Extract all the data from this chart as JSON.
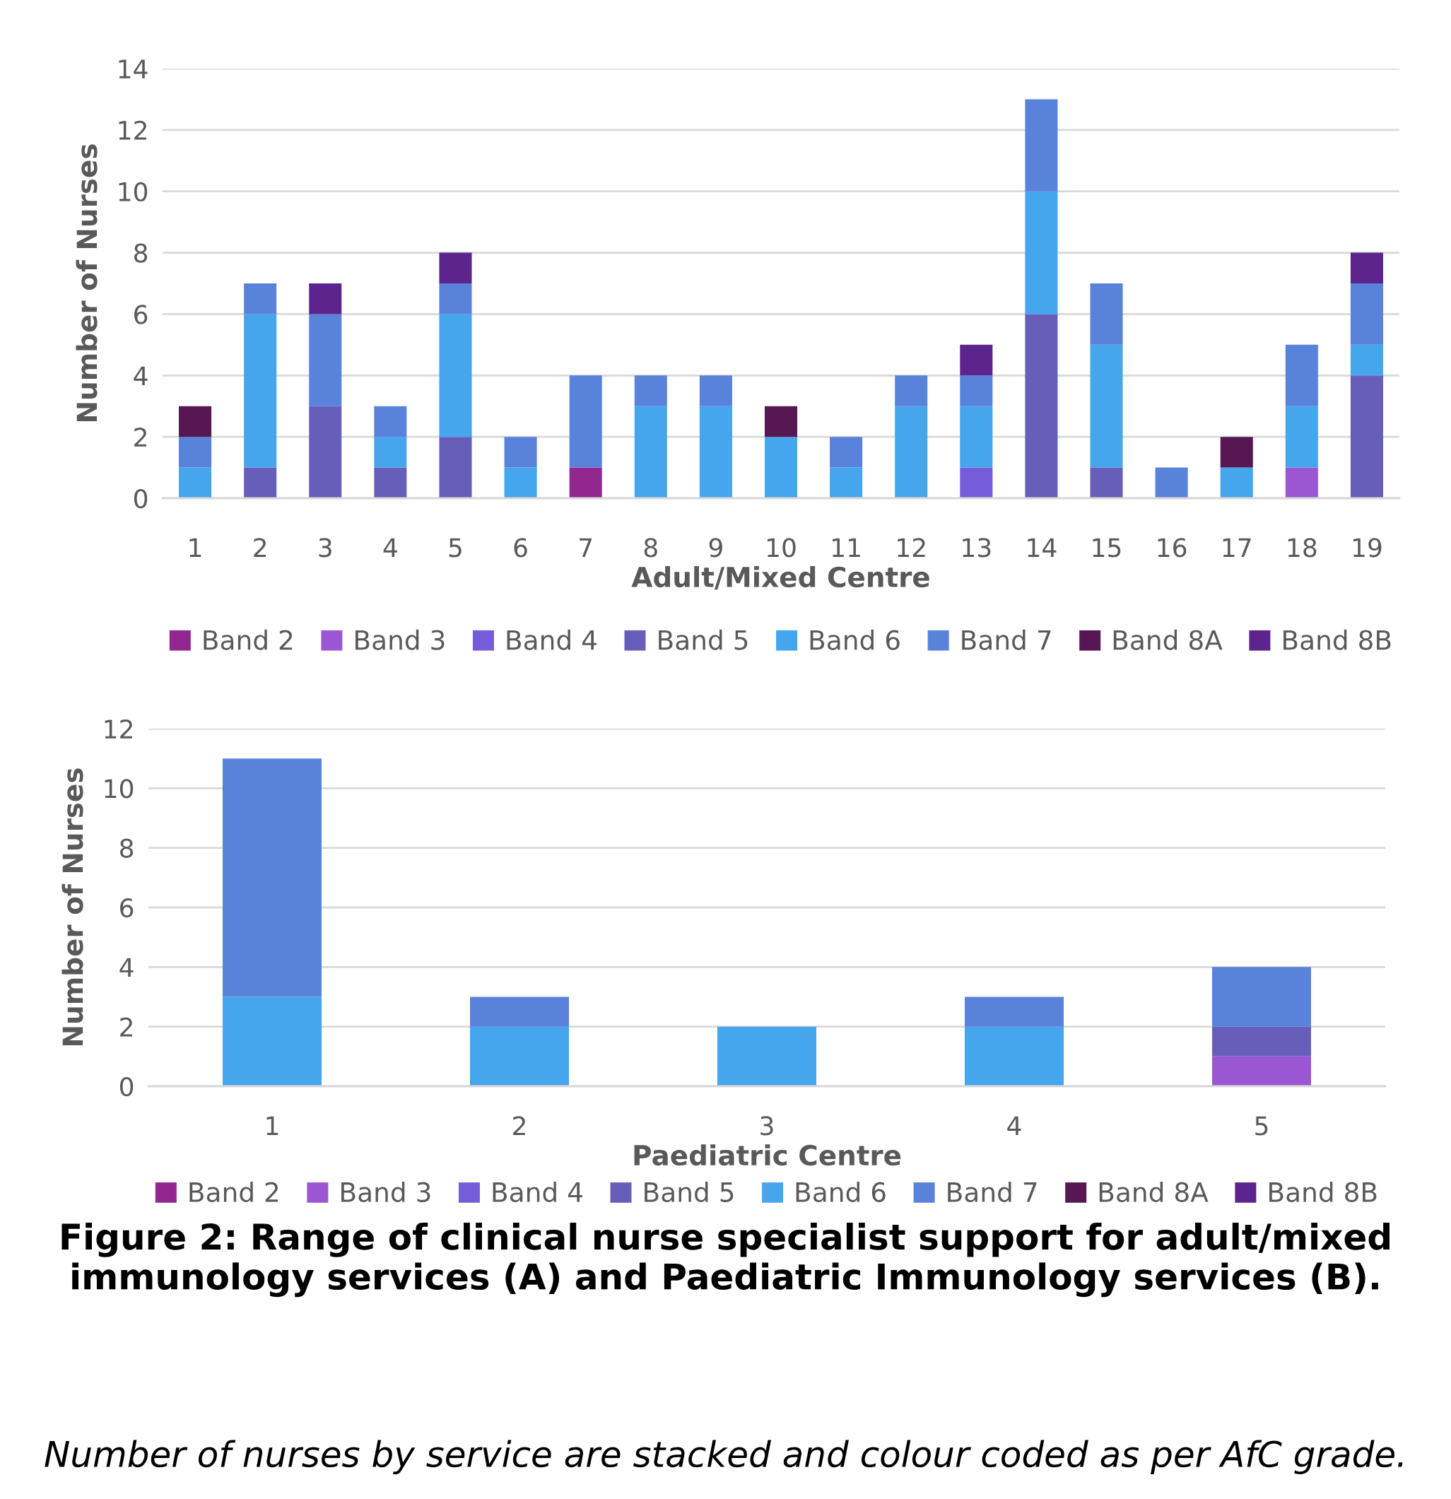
{
  "chart_data": [
    {
      "type": "bar",
      "stacked": true,
      "xlabel": "Adult/Mixed Centre",
      "ylabel": "Number of Nurses",
      "categories": [
        "1",
        "2",
        "3",
        "4",
        "5",
        "6",
        "7",
        "8",
        "9",
        "10",
        "11",
        "12",
        "13",
        "14",
        "15",
        "16",
        "17",
        "18",
        "19"
      ],
      "series": [
        {
          "name": "Band 2",
          "color": "#92278f",
          "values": [
            null,
            null,
            null,
            null,
            null,
            null,
            1,
            null,
            null,
            null,
            null,
            null,
            null,
            null,
            null,
            null,
            null,
            null,
            null
          ]
        },
        {
          "name": "Band 3",
          "color": "#9b57d3",
          "values": [
            null,
            null,
            null,
            null,
            null,
            null,
            null,
            null,
            null,
            null,
            null,
            null,
            null,
            null,
            null,
            null,
            null,
            1,
            null
          ]
        },
        {
          "name": "Band 4",
          "color": "#755dd9",
          "values": [
            null,
            null,
            null,
            null,
            null,
            null,
            null,
            null,
            null,
            null,
            null,
            null,
            1,
            null,
            null,
            null,
            null,
            null,
            null
          ]
        },
        {
          "name": "Band 5",
          "color": "#665eb8",
          "values": [
            null,
            1,
            3,
            1,
            2,
            null,
            null,
            null,
            null,
            null,
            null,
            null,
            null,
            6,
            1,
            null,
            null,
            null,
            4
          ]
        },
        {
          "name": "Band 6",
          "color": "#45a5ed",
          "values": [
            1,
            5,
            null,
            1,
            4,
            1,
            null,
            3,
            3,
            2,
            1,
            3,
            2,
            4,
            4,
            null,
            1,
            2,
            1
          ]
        },
        {
          "name": "Band 7",
          "color": "#5982db",
          "values": [
            1,
            1,
            3,
            1,
            1,
            1,
            3,
            1,
            1,
            null,
            1,
            1,
            1,
            3,
            2,
            1,
            null,
            2,
            2
          ]
        },
        {
          "name": "Band 8A",
          "color": "#561753",
          "values": [
            1,
            null,
            null,
            null,
            null,
            null,
            null,
            null,
            null,
            1,
            null,
            null,
            null,
            null,
            null,
            null,
            1,
            null,
            null
          ]
        },
        {
          "name": "Band 8B",
          "color": "#5c248c",
          "values": [
            null,
            null,
            1,
            null,
            1,
            null,
            null,
            null,
            null,
            null,
            null,
            null,
            1,
            null,
            null,
            null,
            null,
            null,
            1
          ]
        }
      ],
      "ylim": [
        0,
        14
      ],
      "yticks": [
        0,
        2,
        4,
        6,
        8,
        10,
        12,
        14
      ],
      "grid": "y",
      "legend": "bottom"
    },
    {
      "type": "bar",
      "stacked": true,
      "xlabel": "Paediatric Centre",
      "ylabel": "Number of Nurses",
      "categories": [
        "1",
        "2",
        "3",
        "4",
        "5"
      ],
      "series": [
        {
          "name": "Band 2",
          "color": "#92278f",
          "values": [
            null,
            null,
            null,
            null,
            null
          ]
        },
        {
          "name": "Band 3",
          "color": "#9b57d3",
          "values": [
            null,
            null,
            null,
            null,
            1
          ]
        },
        {
          "name": "Band 4",
          "color": "#755dd9",
          "values": [
            null,
            null,
            null,
            null,
            null
          ]
        },
        {
          "name": "Band 5",
          "color": "#665eb8",
          "values": [
            null,
            null,
            null,
            null,
            1
          ]
        },
        {
          "name": "Band 6",
          "color": "#45a5ed",
          "values": [
            3,
            2,
            2,
            2,
            null
          ]
        },
        {
          "name": "Band 7",
          "color": "#5982db",
          "values": [
            8,
            1,
            null,
            1,
            2
          ]
        },
        {
          "name": "Band 8A",
          "color": "#561753",
          "values": [
            null,
            null,
            null,
            null,
            null
          ]
        },
        {
          "name": "Band 8B",
          "color": "#5c248c",
          "values": [
            null,
            null,
            null,
            null,
            null
          ]
        }
      ],
      "ylim": [
        0,
        12
      ],
      "yticks": [
        0,
        2,
        4,
        6,
        8,
        10,
        12
      ],
      "grid": "y",
      "legend": "bottom",
      "annotations": [
        "Figure 2: Range of clinical nurse specialist support for adult/mixed immunology services (A) and Paediatric Immunology services (B).",
        "Number of nurses by service are stacked and colour coded as per AfC grade."
      ]
    }
  ]
}
